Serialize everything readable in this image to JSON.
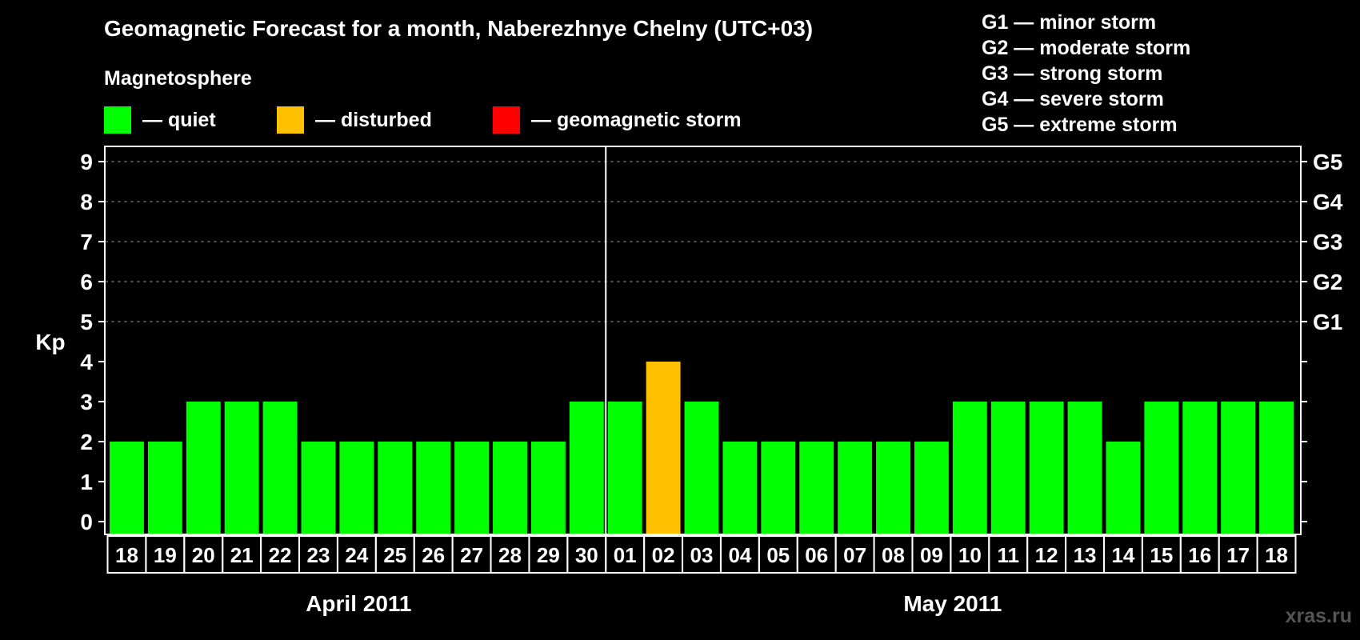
{
  "title": "Geomagnetic Forecast for a month, Naberezhnye Chelny (UTC+03)",
  "legend": {
    "heading": "Magnetosphere",
    "items": [
      {
        "label": "— quiet",
        "color": "#00ff00"
      },
      {
        "label": "— disturbed",
        "color": "#ffc000"
      },
      {
        "label": "— geomagnetic storm",
        "color": "#ff0000"
      }
    ]
  },
  "storm_levels": [
    "G1 — minor storm",
    "G2 — moderate storm",
    "G3 — strong storm",
    "G4 — severe storm",
    "G5 — extreme storm"
  ],
  "watermark": "xras.ru",
  "chart_data": {
    "type": "bar",
    "ylabel": "Kp",
    "ylim": [
      0,
      9
    ],
    "yticks": [
      0,
      1,
      2,
      3,
      4,
      5,
      6,
      7,
      8,
      9
    ],
    "right_axis": [
      {
        "kp": 5,
        "label": "G1"
      },
      {
        "kp": 6,
        "label": "G2"
      },
      {
        "kp": 7,
        "label": "G3"
      },
      {
        "kp": 8,
        "label": "G4"
      },
      {
        "kp": 9,
        "label": "G5"
      }
    ],
    "grid": "dashed horizontal lines at Kp 5-9",
    "months": [
      {
        "label": "April 2011",
        "days": [
          "18",
          "19",
          "20",
          "21",
          "22",
          "23",
          "24",
          "25",
          "26",
          "27",
          "28",
          "29",
          "30"
        ]
      },
      {
        "label": "May 2011",
        "days": [
          "01",
          "02",
          "03",
          "04",
          "05",
          "06",
          "07",
          "08",
          "09",
          "10",
          "11",
          "12",
          "13",
          "14",
          "15",
          "16",
          "17",
          "18"
        ]
      }
    ],
    "categories": [
      "18",
      "19",
      "20",
      "21",
      "22",
      "23",
      "24",
      "25",
      "26",
      "27",
      "28",
      "29",
      "30",
      "01",
      "02",
      "03",
      "04",
      "05",
      "06",
      "07",
      "08",
      "09",
      "10",
      "11",
      "12",
      "13",
      "14",
      "15",
      "16",
      "17",
      "18"
    ],
    "values": [
      2,
      2,
      3,
      3,
      3,
      2,
      2,
      2,
      2,
      2,
      2,
      2,
      3,
      3,
      4,
      3,
      2,
      2,
      2,
      2,
      2,
      2,
      3,
      3,
      3,
      3,
      2,
      3,
      3,
      3,
      3
    ],
    "colors": {
      "quiet": "#00ff00",
      "disturbed": "#ffc000",
      "storm": "#ff0000"
    }
  }
}
